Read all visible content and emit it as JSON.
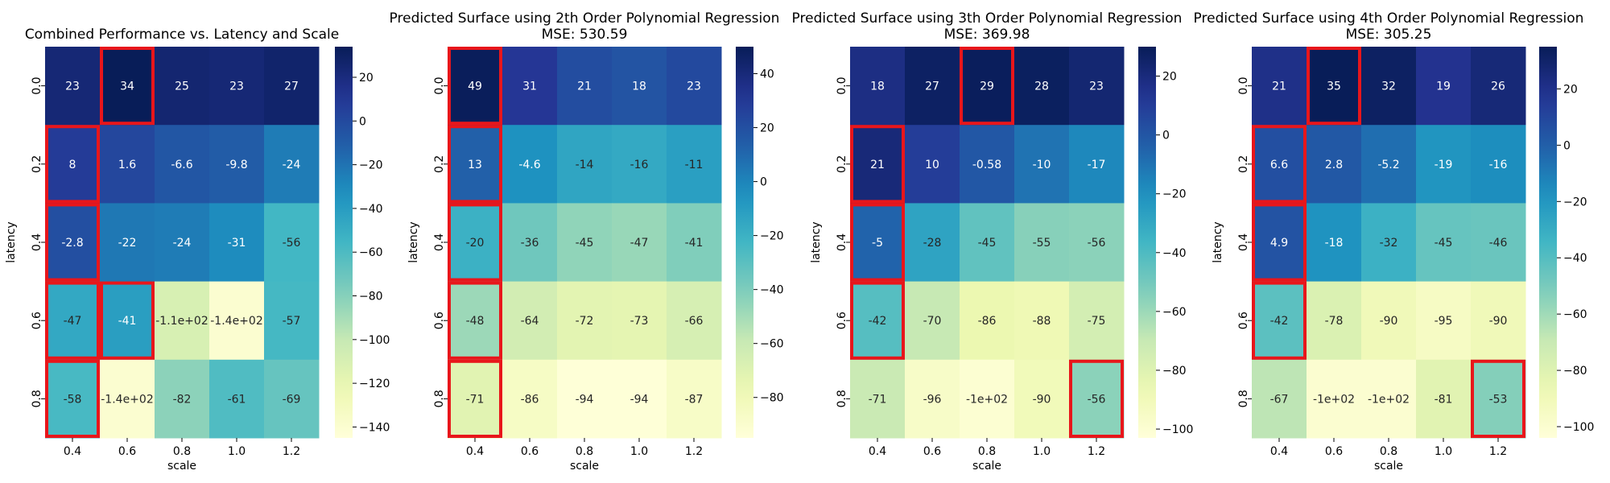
{
  "chart_data": [
    {
      "type": "heatmap",
      "title": "Combined Performance vs. Latency and Scale",
      "subtitle": "",
      "xlabel": "scale",
      "ylabel": "latency",
      "x_categories": [
        "0.4",
        "0.6",
        "0.8",
        "1.0",
        "1.2"
      ],
      "y_categories": [
        "0.0",
        "0.2",
        "0.4",
        "0.6",
        "0.8"
      ],
      "values": [
        [
          23,
          34,
          25,
          23,
          27
        ],
        [
          8,
          1.6,
          -6.6,
          -9.8,
          -24
        ],
        [
          -2.8,
          -22,
          -24,
          -31,
          -56
        ],
        [
          -47,
          -41,
          -110,
          -140,
          -57
        ],
        [
          -58,
          -140,
          -82,
          -61,
          -69
        ]
      ],
      "cell_labels": [
        [
          "23",
          "34",
          "25",
          "23",
          "27"
        ],
        [
          "8",
          "1.6",
          "-6.6",
          "-9.8",
          "-24"
        ],
        [
          "-2.8",
          "-22",
          "-24",
          "-31",
          "-56"
        ],
        [
          "-47",
          "-41",
          "-1.1e+02",
          "-1.4e+02",
          "-57"
        ],
        [
          "-58",
          "-1.4e+02",
          "-82",
          "-61",
          "-69"
        ]
      ],
      "colorbar_range": [
        -145,
        34
      ],
      "colorbar_ticks": [
        "20",
        "0",
        "−20",
        "−40",
        "−60",
        "−80",
        "−100",
        "−120",
        "−140"
      ],
      "colorbar_tick_values": [
        20,
        0,
        -20,
        -40,
        -60,
        -80,
        -100,
        -120,
        -140
      ],
      "colormap": "YlGnBu",
      "highlighted_cells": [
        [
          0,
          1
        ],
        [
          1,
          0
        ],
        [
          2,
          0
        ],
        [
          3,
          0
        ],
        [
          3,
          1
        ],
        [
          4,
          0
        ]
      ],
      "highlight_color": "#e8161b"
    },
    {
      "type": "heatmap",
      "title": "Predicted Surface using 2th Order Polynomial Regression",
      "subtitle": "MSE: 530.59",
      "xlabel": "scale",
      "ylabel": "latency",
      "x_categories": [
        "0.4",
        "0.6",
        "0.8",
        "1.0",
        "1.2"
      ],
      "y_categories": [
        "0.0",
        "0.2",
        "0.4",
        "0.6",
        "0.8"
      ],
      "values": [
        [
          49,
          31,
          21,
          18,
          23
        ],
        [
          13,
          -4.6,
          -14,
          -16,
          -11
        ],
        [
          -20,
          -36,
          -45,
          -47,
          -41
        ],
        [
          -48,
          -64,
          -72,
          -73,
          -66
        ],
        [
          -71,
          -86,
          -94,
          -94,
          -87
        ]
      ],
      "cell_labels": [
        [
          "49",
          "31",
          "21",
          "18",
          "23"
        ],
        [
          "13",
          "-4.6",
          "-14",
          "-16",
          "-11"
        ],
        [
          "-20",
          "-36",
          "-45",
          "-47",
          "-41"
        ],
        [
          "-48",
          "-64",
          "-72",
          "-73",
          "-66"
        ],
        [
          "-71",
          "-86",
          "-94",
          "-94",
          "-87"
        ]
      ],
      "colorbar_range": [
        -95,
        50
      ],
      "colorbar_ticks": [
        "40",
        "20",
        "0",
        "−20",
        "−40",
        "−60",
        "−80"
      ],
      "colorbar_tick_values": [
        40,
        20,
        0,
        -20,
        -40,
        -60,
        -80
      ],
      "colormap": "YlGnBu",
      "highlighted_cells": [
        [
          0,
          0
        ],
        [
          1,
          0
        ],
        [
          2,
          0
        ],
        [
          3,
          0
        ],
        [
          4,
          0
        ]
      ],
      "highlight_color": "#e8161b"
    },
    {
      "type": "heatmap",
      "title": "Predicted Surface using 3th Order Polynomial Regression",
      "subtitle": "MSE: 369.98",
      "xlabel": "scale",
      "ylabel": "latency",
      "x_categories": [
        "0.4",
        "0.6",
        "0.8",
        "1.0",
        "1.2"
      ],
      "y_categories": [
        "0.0",
        "0.2",
        "0.4",
        "0.6",
        "0.8"
      ],
      "values": [
        [
          18,
          27,
          29,
          28,
          23
        ],
        [
          21,
          10,
          -0.58,
          -10,
          -17
        ],
        [
          -5,
          -28,
          -45,
          -55,
          -56
        ],
        [
          -42,
          -70,
          -86,
          -88,
          -75
        ],
        [
          -71,
          -96,
          -100,
          -90,
          -56
        ]
      ],
      "cell_labels": [
        [
          "18",
          "27",
          "29",
          "28",
          "23"
        ],
        [
          "21",
          "10",
          "-0.58",
          "-10",
          "-17"
        ],
        [
          "-5",
          "-28",
          "-45",
          "-55",
          "-56"
        ],
        [
          "-42",
          "-70",
          "-86",
          "-88",
          "-75"
        ],
        [
          "-71",
          "-96",
          "-1e+02",
          "-90",
          "-56"
        ]
      ],
      "colorbar_range": [
        -103,
        30
      ],
      "colorbar_ticks": [
        "20",
        "0",
        "−20",
        "−40",
        "−60",
        "−80",
        "−100"
      ],
      "colorbar_tick_values": [
        20,
        0,
        -20,
        -40,
        -60,
        -80,
        -100
      ],
      "colormap": "YlGnBu",
      "highlighted_cells": [
        [
          0,
          2
        ],
        [
          1,
          0
        ],
        [
          2,
          0
        ],
        [
          3,
          0
        ],
        [
          4,
          4
        ]
      ],
      "highlight_color": "#e8161b"
    },
    {
      "type": "heatmap",
      "title": "Predicted Surface using 4th Order Polynomial Regression",
      "subtitle": "MSE: 305.25",
      "xlabel": "scale",
      "ylabel": "latency",
      "x_categories": [
        "0.4",
        "0.6",
        "0.8",
        "1.0",
        "1.2"
      ],
      "y_categories": [
        "0.0",
        "0.2",
        "0.4",
        "0.6",
        "0.8"
      ],
      "values": [
        [
          21,
          35,
          32,
          19,
          26
        ],
        [
          6.6,
          2.8,
          -5.2,
          -19,
          -16
        ],
        [
          4.9,
          -18,
          -32,
          -45,
          -46
        ],
        [
          -42,
          -78,
          -90,
          -95,
          -90
        ],
        [
          -67,
          -100,
          -100,
          -81,
          -53
        ]
      ],
      "cell_labels": [
        [
          "21",
          "35",
          "32",
          "19",
          "26"
        ],
        [
          "6.6",
          "2.8",
          "-5.2",
          "-19",
          "-16"
        ],
        [
          "4.9",
          "-18",
          "-32",
          "-45",
          "-46"
        ],
        [
          "-42",
          "-78",
          "-90",
          "-95",
          "-90"
        ],
        [
          "-67",
          "-1e+02",
          "-1e+02",
          "-81",
          "-53"
        ]
      ],
      "colorbar_range": [
        -104,
        35
      ],
      "colorbar_ticks": [
        "20",
        "0",
        "−20",
        "−40",
        "−60",
        "−80",
        "−100"
      ],
      "colorbar_tick_values": [
        20,
        0,
        -20,
        -40,
        -60,
        -80,
        -100
      ],
      "colormap": "YlGnBu",
      "highlighted_cells": [
        [
          0,
          1
        ],
        [
          1,
          0
        ],
        [
          2,
          0
        ],
        [
          3,
          0
        ],
        [
          4,
          4
        ]
      ],
      "highlight_color": "#e8161b"
    }
  ]
}
